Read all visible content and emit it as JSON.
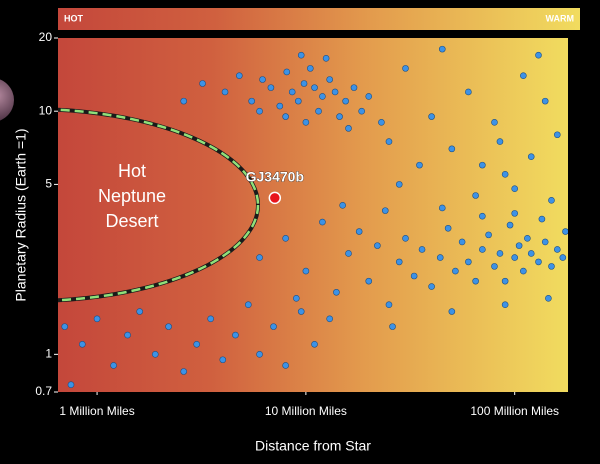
{
  "chart_data": {
    "type": "scatter",
    "temperature_bar": {
      "left": "HOT",
      "right": "WARM"
    },
    "x_label": "Distance from Star",
    "y_label": "Planetary Radius (Earth =1)",
    "desert_label": [
      "Hot",
      "Neptune",
      "Desert"
    ],
    "x_log": true,
    "y_log": true,
    "xlim": [
      650000,
      180000000
    ],
    "ylim": [
      0.7,
      20
    ],
    "xticks": [
      {
        "value": 1000000,
        "label": "1 Million Miles"
      },
      {
        "value": 10000000,
        "label": "10 Million Miles"
      },
      {
        "value": 100000000,
        "label": "100 Million Miles"
      }
    ],
    "yticks": [
      20,
      10,
      5,
      1,
      0.7
    ],
    "color": "#3d92e6",
    "x": [
      3200000.0,
      4100000.0,
      4800000.0,
      5500000.0,
      6200000.0,
      6800000.0,
      7500000.0,
      8100000.0,
      8600000.0,
      9200000.0,
      9800000.0,
      10500000.0,
      11000000.0,
      11500000.0,
      12000000.0,
      13000000.0,
      13800000.0,
      14500000.0,
      15500000.0,
      17000000.0,
      18500000.0,
      20000000.0,
      23000000.0,
      10000000.0,
      8000000.0,
      6000000.0,
      12500000.0,
      9500000.0,
      2600000.0,
      16000000.0,
      30000000.0,
      45000000.0,
      60000000.0,
      80000000.0,
      110000000.0,
      140000000.0,
      50000000.0,
      70000000.0,
      90000000.0,
      120000000.0,
      160000000.0,
      25000000.0,
      35000000.0,
      40000000.0,
      130000000.0,
      100000000.0,
      65000000.0,
      150000000.0,
      28000000.0,
      85000000.0,
      6000000.0,
      8000000.0,
      10000000.0,
      12000000.0,
      14000000.0,
      16000000.0,
      18000000.0,
      20000000.0,
      22000000.0,
      25000000.0,
      28000000.0,
      30000000.0,
      33000000.0,
      36000000.0,
      40000000.0,
      44000000.0,
      48000000.0,
      52000000.0,
      56000000.0,
      60000000.0,
      65000000.0,
      70000000.0,
      75000000.0,
      80000000.0,
      85000000.0,
      90000000.0,
      95000000.0,
      100000000.0,
      105000000.0,
      110000000.0,
      115000000.0,
      120000000.0,
      130000000.0,
      140000000.0,
      150000000.0,
      160000000.0,
      170000000.0,
      175000000.0,
      135000000.0,
      100000000.0,
      70000000.0,
      45000000.0,
      24000000.0,
      15000000.0,
      9000000.0,
      13000000.0,
      26000000.0,
      50000000.0,
      90000000.0,
      145000000.0,
      700000.0,
      850000.0,
      1000000.0,
      1200000.0,
      1400000.0,
      1600000.0,
      1900000.0,
      2200000.0,
      2600000.0,
      3000000.0,
      3500000.0,
      4000000.0,
      4600000.0,
      5300000.0,
      6000000.0,
      7000000.0,
      8000000.0,
      9500000.0,
      11000000.0,
      750000.0
    ],
    "y": [
      13,
      12,
      14,
      11,
      13.5,
      12.5,
      10.5,
      14.5,
      12,
      11,
      13,
      15,
      12.5,
      10,
      11.5,
      13.5,
      12,
      9.5,
      11,
      12.5,
      10,
      11.5,
      9,
      9,
      9.5,
      10,
      16.5,
      17,
      11,
      8.5,
      15,
      18,
      12,
      9,
      14,
      11,
      7,
      6,
      5.5,
      6.5,
      8,
      7.5,
      6,
      9.5,
      17,
      4.8,
      4.5,
      4.3,
      5,
      7.5,
      2.5,
      3.0,
      2.2,
      3.5,
      1.8,
      2.6,
      3.2,
      2.0,
      2.8,
      1.6,
      2.4,
      3.0,
      2.1,
      2.7,
      1.9,
      2.5,
      3.3,
      2.2,
      2.9,
      2.4,
      2.0,
      2.7,
      3.1,
      2.3,
      2.6,
      2.0,
      3.4,
      2.5,
      2.8,
      2.2,
      3.0,
      2.6,
      2.4,
      2.9,
      2.3,
      2.7,
      2.5,
      3.2,
      3.6,
      3.8,
      3.7,
      4.0,
      3.9,
      4.1,
      1.7,
      1.4,
      1.3,
      1.5,
      1.6,
      1.7,
      1.3,
      1.1,
      1.4,
      0.9,
      1.2,
      1.5,
      1.0,
      1.3,
      0.85,
      1.1,
      1.4,
      0.95,
      1.2,
      1.6,
      1.0,
      1.3,
      0.9,
      1.5,
      1.1,
      0.75
    ],
    "highlight": {
      "label": "GJ3470b",
      "x": 7100000,
      "y": 4.4,
      "color": "#e8141c"
    }
  }
}
